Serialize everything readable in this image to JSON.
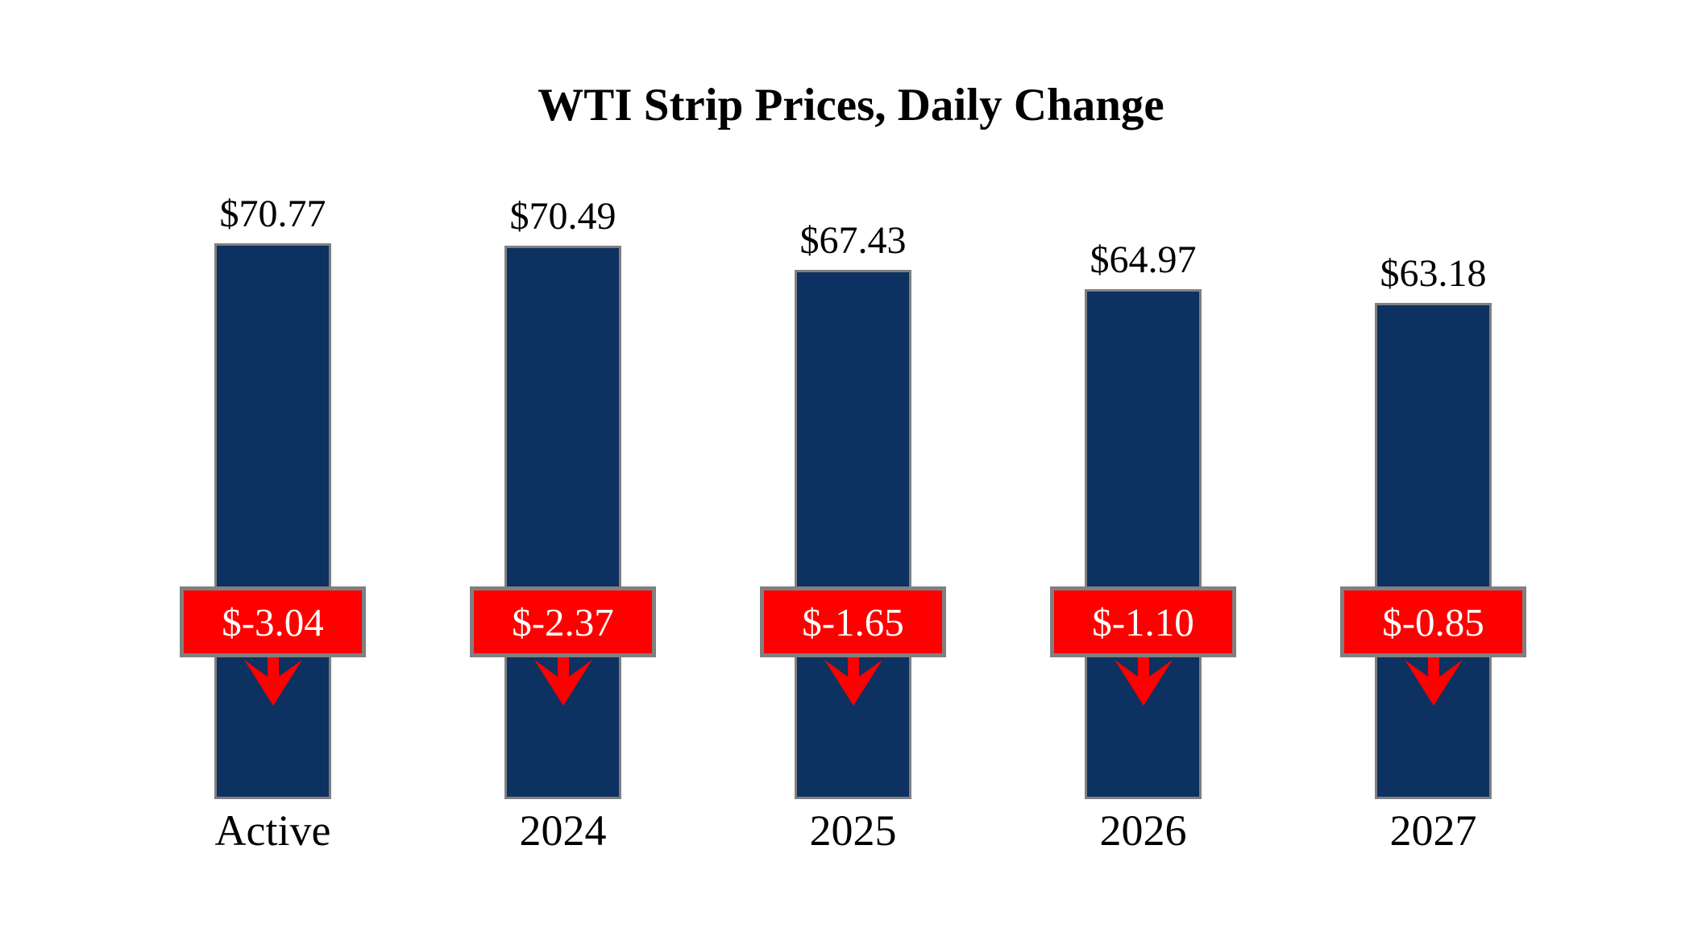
{
  "title": "WTI Strip Prices, Daily Change",
  "colors": {
    "background": "#FFFFFF",
    "bar_fill": "#0D3160",
    "bar_border": "#808080",
    "badge_fill": "#FF0000",
    "badge_border": "#808080",
    "badge_text": "#FFFFFF",
    "arrow": "#FF0000",
    "text": "#000000"
  },
  "chart_data": {
    "type": "bar",
    "title": "WTI Strip Prices, Daily Change",
    "categories": [
      "Active",
      "2024",
      "2025",
      "2026",
      "2027"
    ],
    "series": [
      {
        "name": "WTI Strip Price",
        "values": [
          70.77,
          70.49,
          67.43,
          64.97,
          63.18
        ],
        "labels": [
          "$70.77",
          "$70.49",
          "$67.43",
          "$64.97",
          "$63.18"
        ],
        "label_position": "above-bar"
      },
      {
        "name": "Daily Change",
        "values": [
          -3.04,
          -2.37,
          -1.65,
          -1.1,
          -0.85
        ],
        "labels": [
          "$-3.04",
          "$-2.37",
          "$-1.65",
          "$-1.10",
          "$-0.85"
        ],
        "label_position": "overlay-badge-with-down-arrow"
      }
    ],
    "baseline": 0,
    "grid": false,
    "axes_visible": false,
    "legend": "none"
  }
}
